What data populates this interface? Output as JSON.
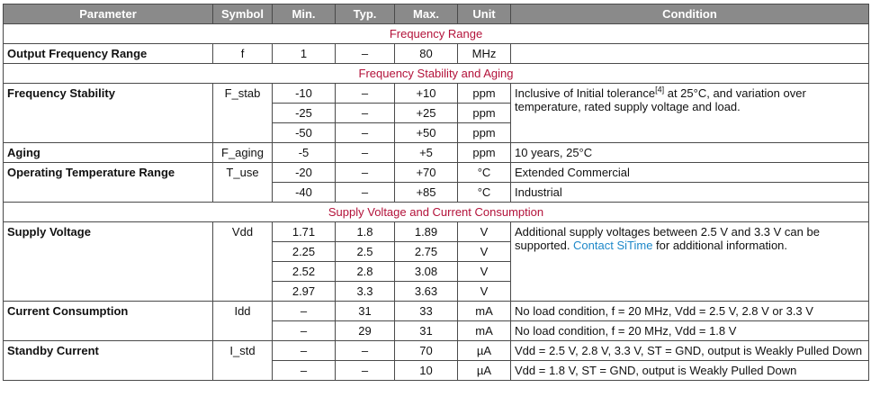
{
  "headers": {
    "parameter": "Parameter",
    "symbol": "Symbol",
    "min": "Min.",
    "typ": "Typ.",
    "max": "Max.",
    "unit": "Unit",
    "condition": "Condition"
  },
  "sections": {
    "freq_range": "Frequency Range",
    "freq_stab": "Frequency Stability and Aging",
    "supply": "Supply Voltage and Current Consumption"
  },
  "rows": {
    "ofr": {
      "param": "Output Frequency Range",
      "sym": "f",
      "min": "1",
      "typ": "–",
      "max": "80",
      "unit": "MHz",
      "cond": ""
    },
    "fs": {
      "param": "Frequency Stability",
      "sym": "F_stab",
      "cond_pre": "Inclusive of Initial tolerance",
      "cond_ref": "[4]",
      "cond_post": " at 25°C, and variation over temperature, rated supply voltage and load.",
      "r1": {
        "min": "-10",
        "typ": "–",
        "max": "+10",
        "unit": "ppm"
      },
      "r2": {
        "min": "-25",
        "typ": "–",
        "max": "+25",
        "unit": "ppm"
      },
      "r3": {
        "min": "-50",
        "typ": "–",
        "max": "+50",
        "unit": "ppm"
      }
    },
    "aging": {
      "param": "Aging",
      "sym": "F_aging",
      "min": "-5",
      "typ": "–",
      "max": "+5",
      "unit": "ppm",
      "cond": "10 years, 25°C"
    },
    "otr": {
      "param": "Operating Temperature Range",
      "sym": "T_use",
      "r1": {
        "min": "-20",
        "typ": "–",
        "max": "+70",
        "unit": "°C",
        "cond": "Extended Commercial"
      },
      "r2": {
        "min": "-40",
        "typ": "–",
        "max": "+85",
        "unit": "°C",
        "cond": "Industrial"
      }
    },
    "sv": {
      "param": "Supply Voltage",
      "sym": "Vdd",
      "cond_pre": "Additional supply voltages between 2.5 V and 3.3 V can be supported. ",
      "cond_link": "Contact SiTime",
      "cond_post": " for additional information.",
      "r1": {
        "min": "1.71",
        "typ": "1.8",
        "max": "1.89",
        "unit": "V"
      },
      "r2": {
        "min": "2.25",
        "typ": "2.5",
        "max": "2.75",
        "unit": "V"
      },
      "r3": {
        "min": "2.52",
        "typ": "2.8",
        "max": "3.08",
        "unit": "V"
      },
      "r4": {
        "min": "2.97",
        "typ": "3.3",
        "max": "3.63",
        "unit": "V"
      }
    },
    "cc": {
      "param": "Current Consumption",
      "sym": "Idd",
      "r1": {
        "min": "–",
        "typ": "31",
        "max": "33",
        "unit": "mA",
        "cond": "No load condition, f = 20 MHz, Vdd = 2.5 V, 2.8 V or 3.3 V"
      },
      "r2": {
        "min": "–",
        "typ": "29",
        "max": "31",
        "unit": "mA",
        "cond": "No load condition, f = 20 MHz, Vdd = 1.8 V"
      }
    },
    "sc": {
      "param": "Standby Current",
      "sym": "I_std",
      "r1": {
        "min": "–",
        "typ": "–",
        "max": "70",
        "unit": "µA",
        "cond": "Vdd = 2.5 V, 2.8 V, 3.3 V, ST = GND, output is Weakly Pulled Down"
      },
      "r2": {
        "min": "–",
        "typ": "–",
        "max": "10",
        "unit": "µA",
        "cond": "Vdd = 1.8 V, ST = GND, output is Weakly Pulled Down"
      }
    }
  }
}
